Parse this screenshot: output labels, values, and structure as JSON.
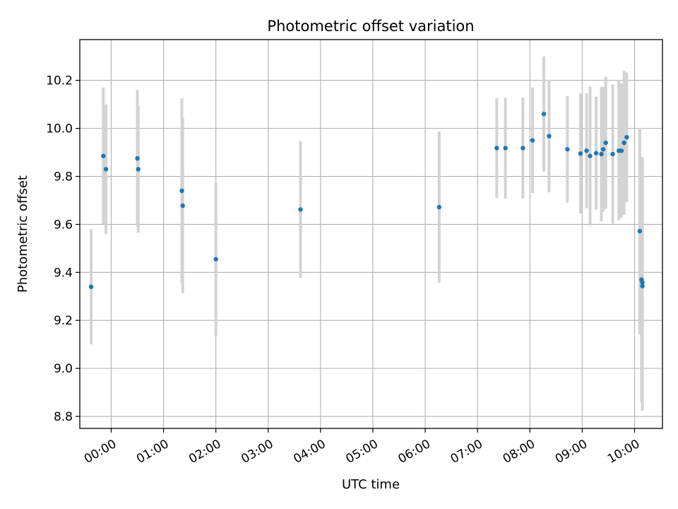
{
  "chart_data": {
    "type": "scatter",
    "title": "Photometric offset variation",
    "xlabel": "UTC time",
    "ylabel": "Photometric offset",
    "xlim": [
      "23:24",
      "10:32"
    ],
    "ylim": [
      8.75,
      10.37
    ],
    "grid": true,
    "xticks": [
      "00:00",
      "01:00",
      "02:00",
      "03:00",
      "04:00",
      "05:00",
      "06:00",
      "07:00",
      "08:00",
      "09:00",
      "10:00"
    ],
    "yticks": [
      "8.8",
      "9.0",
      "9.2",
      "9.4",
      "9.6",
      "9.8",
      "10.0",
      "10.2"
    ],
    "colors": {
      "points": "#1f77b4",
      "errorbars": "#d3d3d3"
    },
    "points": [
      {
        "x": "23:37",
        "y": 9.34,
        "err": 0.24
      },
      {
        "x": "23:51",
        "y": 9.885,
        "err": 0.285
      },
      {
        "x": "23:54",
        "y": 9.83,
        "err": 0.27
      },
      {
        "x": "00:30",
        "y": 9.875,
        "err": 0.285
      },
      {
        "x": "00:31",
        "y": 9.83,
        "err": 0.265
      },
      {
        "x": "01:21",
        "y": 9.74,
        "err": 0.385
      },
      {
        "x": "01:22",
        "y": 9.678,
        "err": 0.365
      },
      {
        "x": "02:00",
        "y": 9.455,
        "err": 0.32
      },
      {
        "x": "03:37",
        "y": 9.662,
        "err": 0.285
      },
      {
        "x": "06:16",
        "y": 9.672,
        "err": 0.315
      },
      {
        "x": "07:22",
        "y": 9.918,
        "err": 0.208
      },
      {
        "x": "07:32",
        "y": 9.918,
        "err": 0.21
      },
      {
        "x": "07:52",
        "y": 9.918,
        "err": 0.21
      },
      {
        "x": "08:03",
        "y": 9.95,
        "err": 0.22
      },
      {
        "x": "08:16",
        "y": 10.06,
        "err": 0.24
      },
      {
        "x": "08:22",
        "y": 9.968,
        "err": 0.235
      },
      {
        "x": "08:43",
        "y": 9.913,
        "err": 0.222
      },
      {
        "x": "08:58",
        "y": 9.895,
        "err": 0.25
      },
      {
        "x": "09:05",
        "y": 9.907,
        "err": 0.24
      },
      {
        "x": "09:09",
        "y": 9.885,
        "err": 0.29
      },
      {
        "x": "09:16",
        "y": 9.897,
        "err": 0.235
      },
      {
        "x": "09:22",
        "y": 9.893,
        "err": 0.28
      },
      {
        "x": "09:24",
        "y": 9.913,
        "err": 0.26
      },
      {
        "x": "09:27",
        "y": 9.94,
        "err": 0.275
      },
      {
        "x": "09:35",
        "y": 9.893,
        "err": 0.29
      },
      {
        "x": "09:42",
        "y": 9.907,
        "err": 0.29
      },
      {
        "x": "09:45",
        "y": 9.907,
        "err": 0.28
      },
      {
        "x": "09:48",
        "y": 9.94,
        "err": 0.3
      },
      {
        "x": "09:51",
        "y": 9.963,
        "err": 0.27
      },
      {
        "x": "10:06",
        "y": 9.572,
        "err": 0.43
      },
      {
        "x": "10:08",
        "y": 9.37,
        "err": 0.51
      },
      {
        "x": "10:09",
        "y": 9.358,
        "err": 0.52
      },
      {
        "x": "10:09",
        "y": 9.343,
        "err": 0.52
      }
    ]
  }
}
